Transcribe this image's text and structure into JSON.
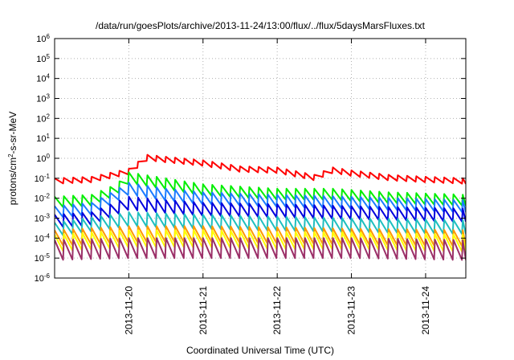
{
  "chart_data": {
    "type": "line",
    "title": "/data/run/goesPlots/archive/2013-11-24/13:00/flux/../flux/5daysMarsFluxes.txt",
    "xlabel": "Coordinated Universal Time (UTC)",
    "ylabel": "protons/cm²-s-sr-MeV",
    "yscale": "log",
    "ylim": [
      1e-06,
      1000000.0
    ],
    "xlim": [
      "2013-11-19T00:00",
      "2013-11-24T13:00"
    ],
    "x_ticks": [
      "2013-11-20",
      "2013-11-21",
      "2013-11-22",
      "2013-11-23",
      "2013-11-24"
    ],
    "y_tick_exponents": [
      "-6",
      "-5",
      "-4",
      "-3",
      "-2",
      "-1",
      "0",
      "1",
      "2",
      "3",
      "4",
      "5",
      "6"
    ],
    "grid": true,
    "legend": "none",
    "series": [
      {
        "color": "#ff0000",
        "sawtooth_hours": 3,
        "x": [
          "2013-11-19T00:00",
          "2013-11-19T12:00",
          "2013-11-20T00:00",
          "2013-11-20T06:00",
          "2013-11-20T12:00",
          "2013-11-21T00:00",
          "2013-11-21T12:00",
          "2013-11-22T00:00",
          "2013-11-22T12:00",
          "2013-11-22T18:00",
          "2013-11-23T00:00",
          "2013-11-23T12:00",
          "2013-11-24T00:00",
          "2013-11-24T13:00"
        ],
        "values": [
          0.1,
          0.12,
          0.3,
          1.5,
          1.2,
          0.8,
          0.4,
          0.35,
          0.15,
          0.35,
          0.25,
          0.15,
          0.12,
          0.1
        ]
      },
      {
        "color": "#00ee00",
        "sawtooth_hours": 3,
        "x": [
          "2013-11-19T00:00",
          "2013-11-19T12:00",
          "2013-11-19T20:00",
          "2013-11-20T00:00",
          "2013-11-20T12:00",
          "2013-11-21T00:00",
          "2013-11-22T00:00",
          "2013-11-22T18:00",
          "2013-11-23T12:00",
          "2013-11-24T13:00"
        ],
        "values": [
          0.012,
          0.015,
          0.05,
          0.2,
          0.1,
          0.05,
          0.03,
          0.03,
          0.02,
          0.015
        ]
      },
      {
        "color": "#1c7cff",
        "sawtooth_hours": 3,
        "x": [
          "2013-11-19T00:00",
          "2013-11-19T12:00",
          "2013-11-20T00:00",
          "2013-11-20T12:00",
          "2013-11-21T00:00",
          "2013-11-22T00:00",
          "2013-11-23T00:00",
          "2013-11-24T13:00"
        ],
        "values": [
          0.004,
          0.006,
          0.06,
          0.03,
          0.02,
          0.015,
          0.012,
          0.008
        ]
      },
      {
        "color": "#0000dd",
        "sawtooth_hours": 3,
        "x": [
          "2013-11-19T00:00",
          "2013-11-19T12:00",
          "2013-11-20T00:00",
          "2013-11-20T12:00",
          "2013-11-21T00:00",
          "2013-11-22T00:00",
          "2013-11-23T00:00",
          "2013-11-24T13:00"
        ],
        "values": [
          0.0015,
          0.002,
          0.012,
          0.008,
          0.006,
          0.005,
          0.004,
          0.003
        ]
      },
      {
        "color": "#1fbfbf",
        "sawtooth_hours": 3,
        "x": [
          "2013-11-19T00:00",
          "2013-11-20T00:00",
          "2013-11-21T00:00",
          "2013-11-22T00:00",
          "2013-11-23T00:00",
          "2013-11-24T13:00"
        ],
        "values": [
          0.0006,
          0.002,
          0.0015,
          0.0012,
          0.001,
          0.0008
        ]
      },
      {
        "color": "#ff9900",
        "sawtooth_hours": 3,
        "x": [
          "2013-11-19T00:00",
          "2013-11-20T00:00",
          "2013-11-21T00:00",
          "2013-11-22T00:00",
          "2013-11-23T00:00",
          "2013-11-24T13:00"
        ],
        "values": [
          0.00025,
          0.0004,
          0.0004,
          0.00035,
          0.0003,
          0.00025
        ]
      },
      {
        "color": "#ffff00",
        "sawtooth_hours": 3,
        "x": [
          "2013-11-19T00:00",
          "2013-11-20T00:00",
          "2013-11-21T00:00",
          "2013-11-22T00:00",
          "2013-11-23T00:00",
          "2013-11-24T13:00"
        ],
        "values": [
          0.00015,
          0.00025,
          0.00025,
          0.0002,
          0.0002,
          0.00015
        ]
      },
      {
        "color": "#9b3068",
        "sawtooth_hours": 3,
        "x": [
          "2013-11-19T00:00",
          "2013-11-20T00:00",
          "2013-11-21T00:00",
          "2013-11-22T00:00",
          "2013-11-23T00:00",
          "2013-11-24T13:00"
        ],
        "values": [
          8e-05,
          0.0001,
          0.0001,
          0.0001,
          0.0001,
          8e-05
        ]
      }
    ]
  }
}
